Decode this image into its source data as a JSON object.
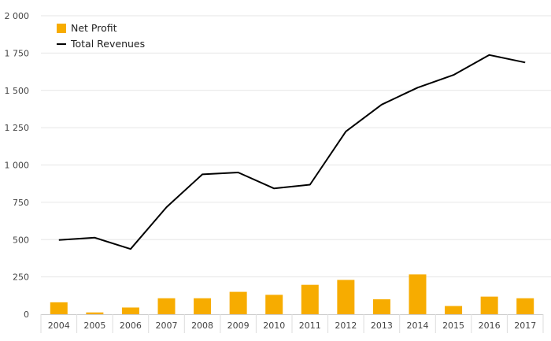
{
  "chart_data": {
    "type": "bar",
    "categories": [
      "2004",
      "2005",
      "2006",
      "2007",
      "2008",
      "2009",
      "2010",
      "2011",
      "2012",
      "2013",
      "2014",
      "2015",
      "2016",
      "2017"
    ],
    "series": [
      {
        "name": "Net Profit",
        "type": "bar",
        "color": "#f7ac00",
        "values": [
          80,
          12,
          45,
          107,
          107,
          150,
          130,
          197,
          230,
          100,
          267,
          55,
          118,
          107
        ]
      },
      {
        "name": "Total Revenues",
        "type": "line",
        "color": "#000000",
        "values": [
          497,
          513,
          437,
          717,
          937,
          950,
          843,
          868,
          1225,
          1405,
          1518,
          1603,
          1737,
          1687
        ]
      }
    ],
    "ylim": [
      0,
      2000
    ],
    "yticks": [
      0,
      250,
      500,
      750,
      1000,
      1250,
      1500,
      1750,
      2000
    ],
    "ytick_labels": [
      "0",
      "250",
      "500",
      "750",
      "1 000",
      "1 250",
      "1 500",
      "1 750",
      "2 000"
    ],
    "grid": true,
    "legend_position": "top-left"
  }
}
